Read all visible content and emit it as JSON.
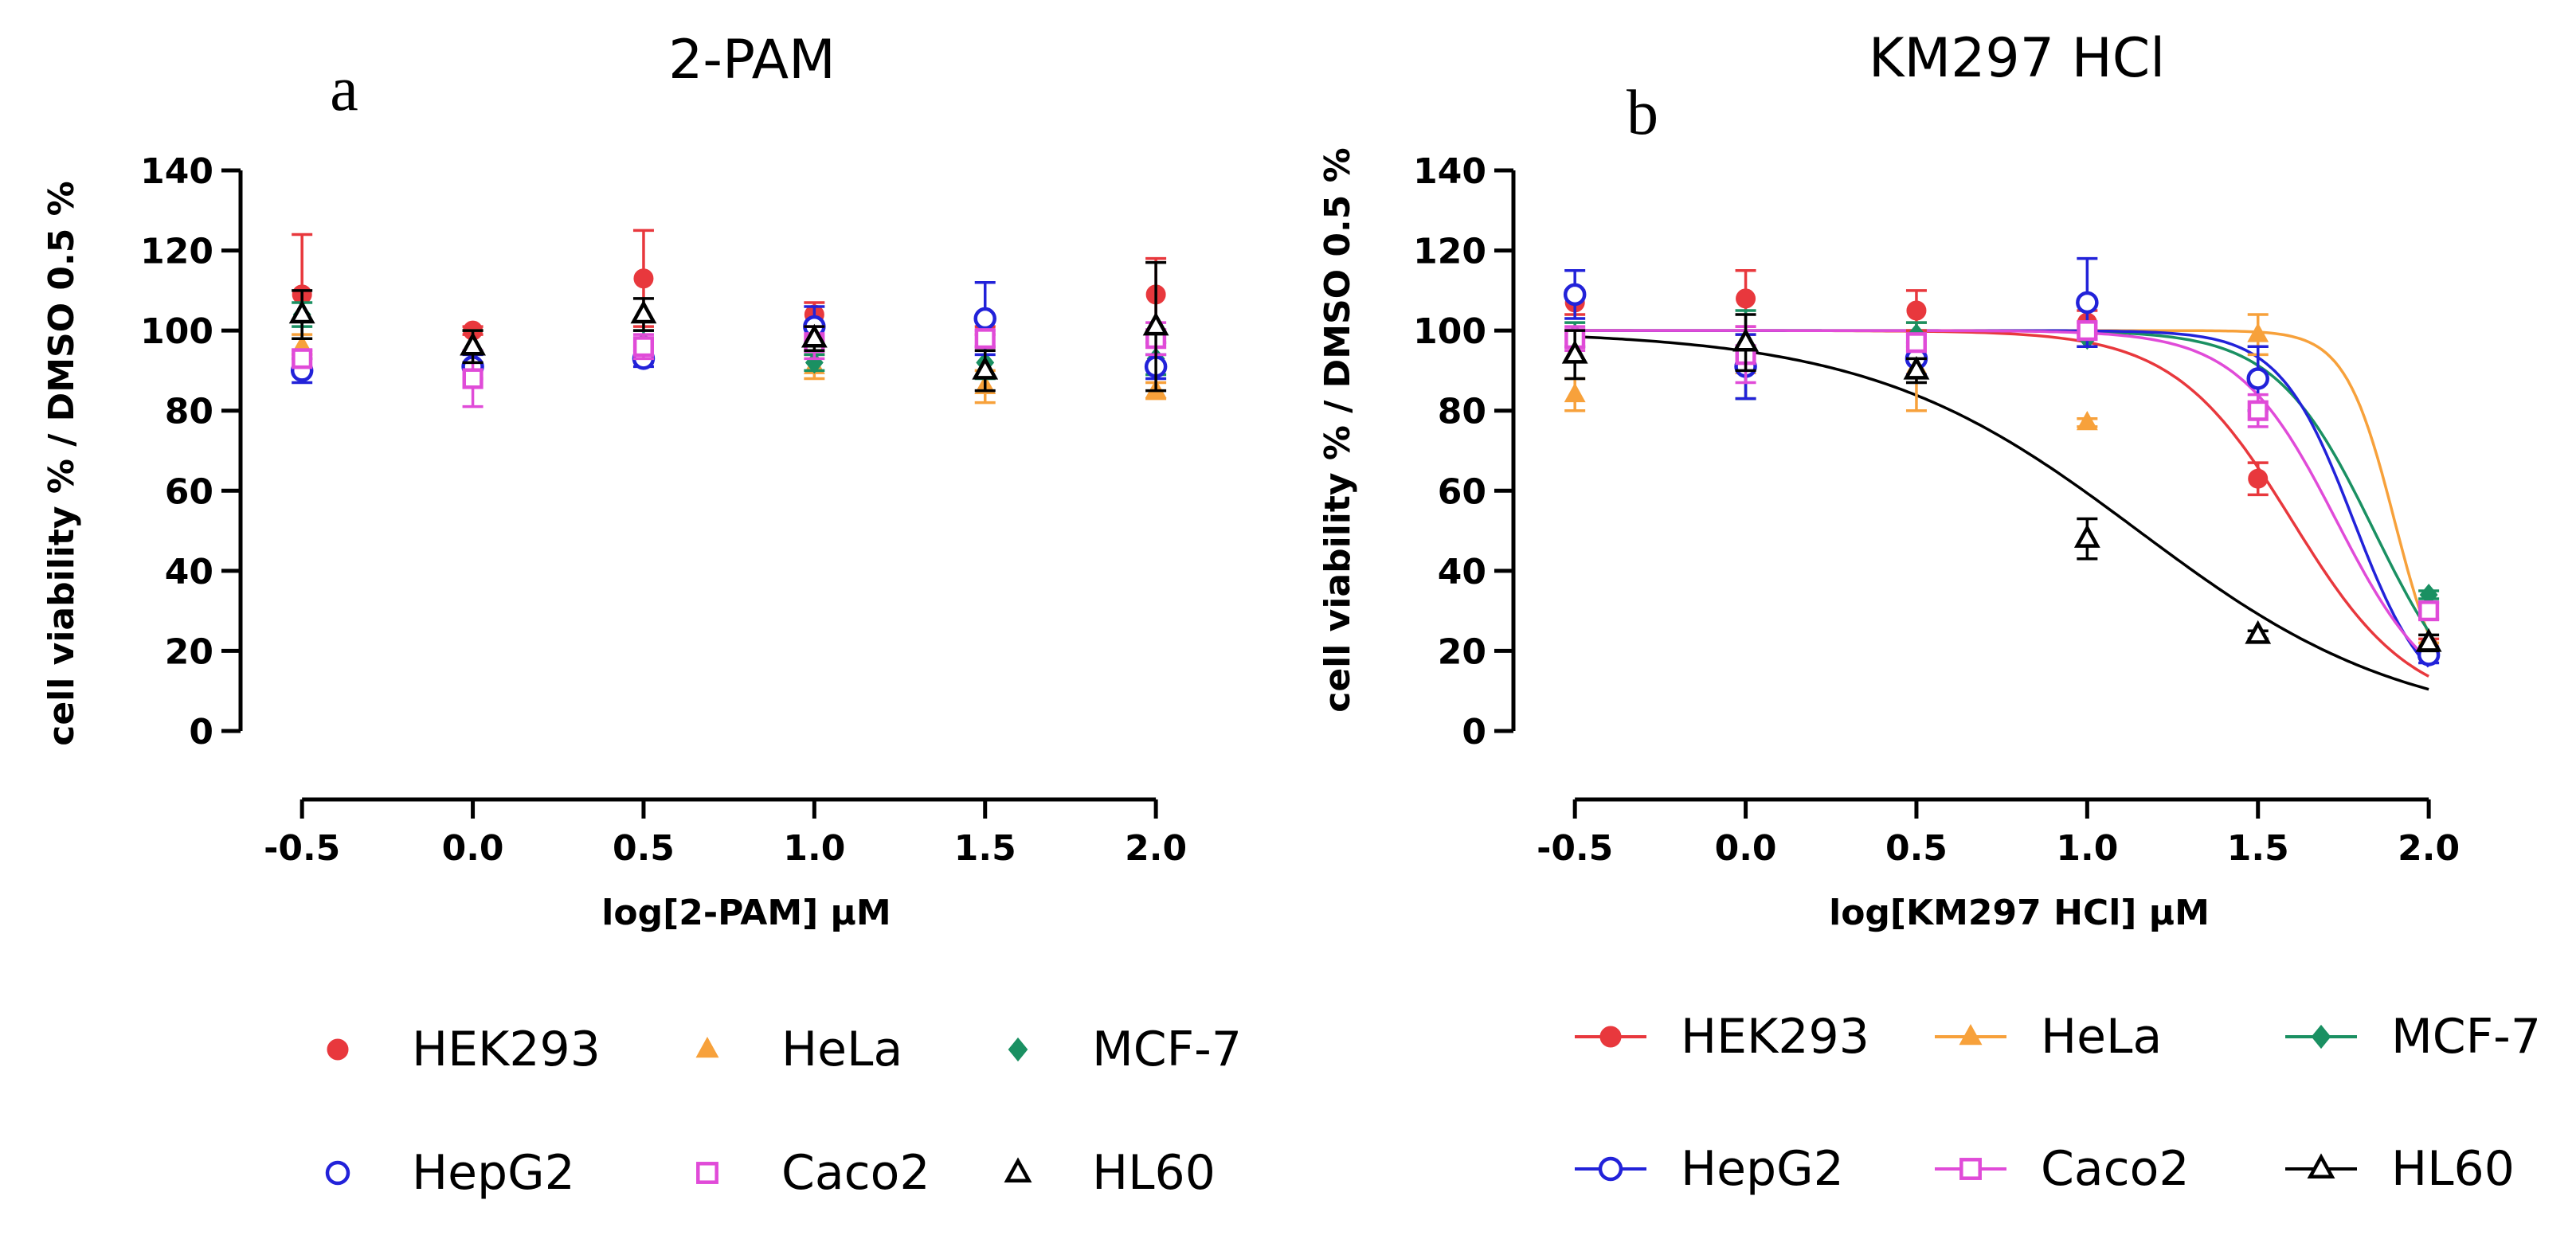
{
  "chart_data": [
    {
      "type": "scatter",
      "title": "2-PAM",
      "panel_letter": "a",
      "xlabel": "log[2-PAM] µM",
      "ylabel": "cell viability % / DMSO 0.5 %",
      "x_ticks": [
        "-0.5",
        "0.0",
        "0.5",
        "1.0",
        "1.5",
        "2.0"
      ],
      "y_ticks": [
        "0",
        "20",
        "40",
        "60",
        "80",
        "100",
        "120",
        "140"
      ],
      "xlim": [
        -0.68,
        2.1
      ],
      "ylim": [
        0,
        140
      ],
      "grid": false,
      "legend_position": "bottom",
      "x": [
        -0.5,
        0.0,
        0.5,
        1.0,
        1.5,
        2.0
      ],
      "series": [
        {
          "name": "HEK293",
          "color": "#e8383d",
          "marker": "circle-filled",
          "values": [
            109,
            100,
            113,
            104,
            100,
            109
          ],
          "err": [
            15,
            1,
            12,
            3,
            1,
            9
          ]
        },
        {
          "name": "HeLa",
          "color": "#f7a13b",
          "marker": "triangle-filled",
          "values": [
            96,
            96,
            94,
            91,
            86,
            85
          ],
          "err": [
            3,
            4,
            2,
            3,
            4,
            2
          ]
        },
        {
          "name": "MCF-7",
          "color": "#1a9062",
          "marker": "diamond-filled",
          "values": [
            104,
            95,
            97,
            92,
            92,
            93
          ],
          "err": [
            3,
            5,
            3,
            2,
            4,
            4
          ]
        },
        {
          "name": "HepG2",
          "color": "#2222d9",
          "marker": "circle-open",
          "values": [
            90,
            91,
            93,
            101,
            103,
            91
          ],
          "err": [
            3,
            3,
            2,
            5,
            9,
            3
          ]
        },
        {
          "name": "Caco2",
          "color": "#e04bd8",
          "marker": "square-open",
          "values": [
            93,
            88,
            96,
            97,
            98,
            98
          ],
          "err": [
            2,
            7,
            3,
            4,
            2,
            4
          ]
        },
        {
          "name": "HL60",
          "color": "#000000",
          "marker": "triangle-open",
          "values": [
            104,
            96,
            104,
            98,
            90,
            101
          ],
          "err": [
            6,
            4,
            4,
            3,
            5,
            16
          ]
        }
      ]
    },
    {
      "type": "line",
      "title": "KM297 HCl",
      "panel_letter": "b",
      "xlabel": "log[KM297 HCl] µM",
      "ylabel": "cell viability % / DMSO 0.5 %",
      "x_ticks": [
        "-0.5",
        "0.0",
        "0.5",
        "1.0",
        "1.5",
        "2.0"
      ],
      "y_ticks": [
        "0",
        "20",
        "40",
        "60",
        "80",
        "100",
        "120",
        "140"
      ],
      "xlim": [
        -0.68,
        2.1
      ],
      "ylim": [
        0,
        140
      ],
      "grid": false,
      "legend_position": "bottom",
      "x": [
        -0.5,
        0.0,
        0.5,
        1.0,
        1.5,
        2.0
      ],
      "series": [
        {
          "name": "HEK293",
          "color": "#e8383d",
          "marker": "circle-filled",
          "values": [
            107,
            108,
            105,
            102,
            63,
            21
          ],
          "err": [
            3,
            7,
            5,
            3,
            4,
            2
          ],
          "fit": {
            "top": 100,
            "bottom": 5,
            "logIC50": 1.6,
            "hill": 2.5
          }
        },
        {
          "name": "HeLa",
          "color": "#f7a13b",
          "marker": "triangle-filled",
          "values": [
            84,
            91,
            91,
            77,
            99,
            20
          ],
          "err": [
            4,
            8,
            11,
            1,
            5,
            2
          ],
          "fit": {
            "top": 100,
            "bottom": 5,
            "logIC50": 1.9,
            "hill": 6
          }
        },
        {
          "name": "MCF-7",
          "color": "#1a9062",
          "marker": "diamond-filled",
          "values": [
            99,
            94,
            99,
            98,
            88,
            34
          ],
          "err": [
            3,
            11,
            3,
            2,
            8,
            1
          ],
          "fit": {
            "top": 100,
            "bottom": 0,
            "logIC50": 1.84,
            "hill": 3
          }
        },
        {
          "name": "HepG2",
          "color": "#2222d9",
          "marker": "circle-open",
          "values": [
            109,
            91,
            93,
            107,
            88,
            19
          ],
          "err": [
            6,
            8,
            4,
            11,
            8,
            2
          ],
          "fit": {
            "top": 100,
            "bottom": 5,
            "logIC50": 1.78,
            "hill": 4
          }
        },
        {
          "name": "Caco2",
          "color": "#e04bd8",
          "marker": "square-open",
          "values": [
            98,
            94,
            97,
            100,
            80,
            30
          ],
          "err": [
            3,
            7,
            2,
            2,
            4,
            2
          ],
          "fit": {
            "top": 100,
            "bottom": 5,
            "logIC50": 1.73,
            "hill": 3
          }
        },
        {
          "name": "HL60",
          "color": "#000000",
          "marker": "triangle-open",
          "values": [
            94,
            97,
            90,
            48,
            24,
            22
          ],
          "err": [
            6,
            7,
            3,
            5,
            1,
            2
          ],
          "fit": {
            "top": 100,
            "bottom": 0,
            "logIC50": 1.15,
            "hill": 1.1
          }
        }
      ]
    }
  ]
}
